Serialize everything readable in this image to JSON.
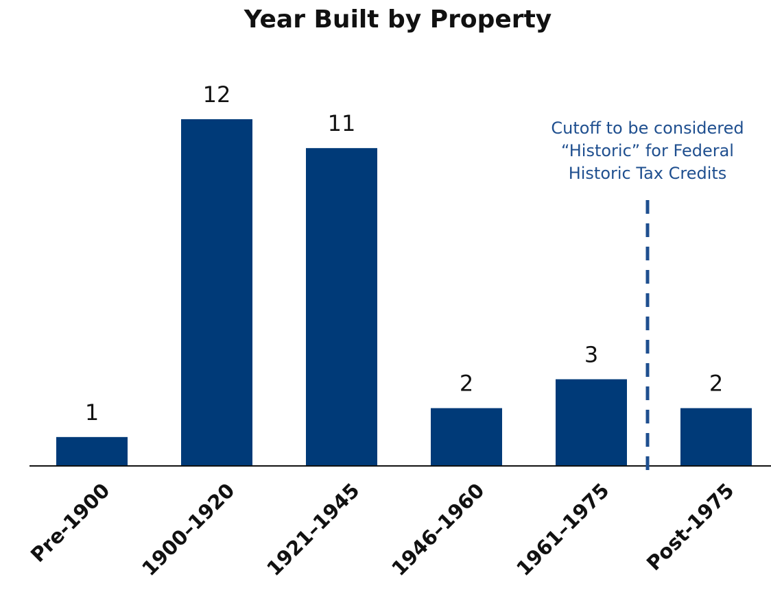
{
  "chart_data": {
    "type": "bar",
    "title": "Year Built by Property",
    "categories": [
      "Pre-1900",
      "1900–1920",
      "1921–1945",
      "1946–1960",
      "1961–1975",
      "Post-1975"
    ],
    "values": [
      1,
      12,
      11,
      2,
      3,
      2
    ],
    "color": "#003a78",
    "annotation": {
      "lines": [
        "Cutoff to be considered",
        "“Historic” for Federal",
        "Historic Tax Credits"
      ],
      "color": "#1f4f8f"
    }
  }
}
